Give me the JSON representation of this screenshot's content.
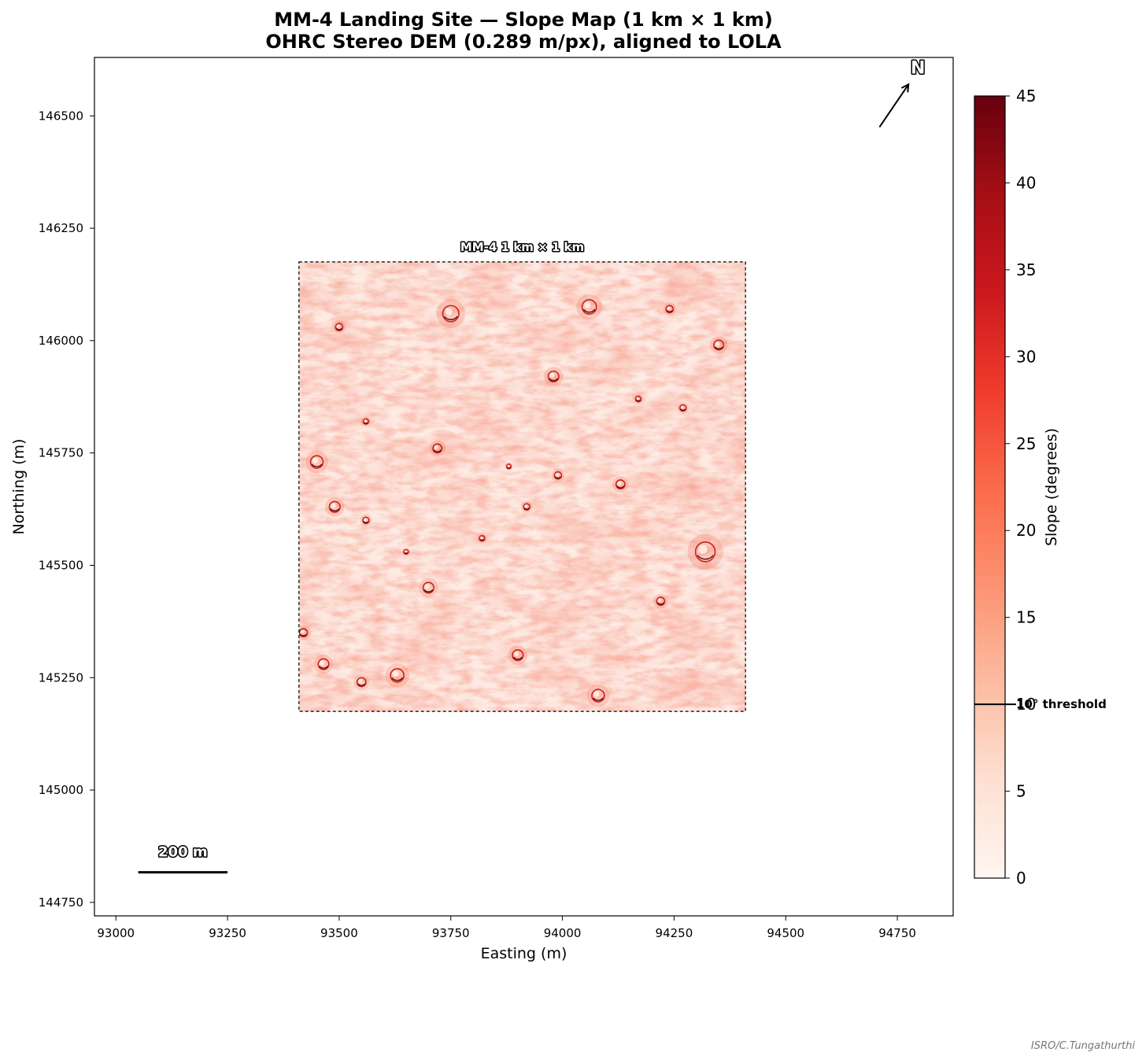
{
  "chart_data": {
    "type": "heatmap",
    "title": "MM-4 Landing Site — Slope Map (1 km × 1 km)",
    "subtitle": "OHRC Stereo DEM (0.289 m/px), aligned to LOLA",
    "xlabel": "Easting (m)",
    "ylabel": "Northing (m)",
    "xlim": [
      92952,
      94875
    ],
    "ylim": [
      144720,
      146630
    ],
    "xticks": [
      93000,
      93250,
      93500,
      93750,
      94000,
      94250,
      94500,
      94750
    ],
    "yticks": [
      144750,
      145000,
      145250,
      145500,
      145750,
      146000,
      146250,
      146500
    ],
    "grid": false,
    "raster_extent": {
      "x": [
        93410,
        94410
      ],
      "y": [
        145175,
        146175
      ]
    },
    "box_label": "MM-4 1 km × 1 km",
    "north_arrow": {
      "label": "N",
      "from": [
        94710,
        146475
      ],
      "to": [
        94775,
        146570
      ]
    },
    "scale_bar": {
      "label": "200 m",
      "x": [
        93050,
        93250
      ],
      "y": 144817
    },
    "colorbar": {
      "label": "Slope (degrees)",
      "range": [
        0,
        45
      ],
      "ticks": [
        0,
        5,
        10,
        15,
        20,
        25,
        30,
        35,
        40,
        45
      ],
      "colormap": "Reds",
      "stops": [
        "#fff5f0",
        "#fee0d2",
        "#fcbba1",
        "#fc9272",
        "#fb6a4a",
        "#ef3b2c",
        "#cb181d",
        "#a50f15",
        "#67000d"
      ]
    },
    "threshold": {
      "value": 10,
      "label": "10° threshold"
    },
    "craters": [
      [
        93980,
        145920,
        12
      ],
      [
        93750,
        146060,
        18
      ],
      [
        94060,
        146075,
        16
      ],
      [
        93500,
        146030,
        8
      ],
      [
        93720,
        145760,
        10
      ],
      [
        93450,
        145730,
        14
      ],
      [
        93490,
        145630,
        12
      ],
      [
        93560,
        145600,
        7
      ],
      [
        94320,
        145530,
        22
      ],
      [
        93700,
        145450,
        12
      ],
      [
        93550,
        145240,
        10
      ],
      [
        93465,
        145280,
        12
      ],
      [
        93630,
        145255,
        15
      ],
      [
        93900,
        145300,
        12
      ],
      [
        93420,
        145350,
        9
      ],
      [
        94080,
        145210,
        14
      ],
      [
        94220,
        145420,
        9
      ],
      [
        93990,
        145700,
        8
      ],
      [
        94130,
        145680,
        10
      ],
      [
        93920,
        145630,
        7
      ],
      [
        93560,
        145820,
        6
      ],
      [
        94270,
        145850,
        7
      ],
      [
        94350,
        145990,
        11
      ],
      [
        93820,
        145560,
        6
      ],
      [
        93650,
        145530,
        5
      ],
      [
        94170,
        145870,
        6
      ],
      [
        94240,
        146070,
        8
      ],
      [
        93880,
        145720,
        5
      ]
    ]
  },
  "credit": "ISRO/C.Tungathurthi"
}
